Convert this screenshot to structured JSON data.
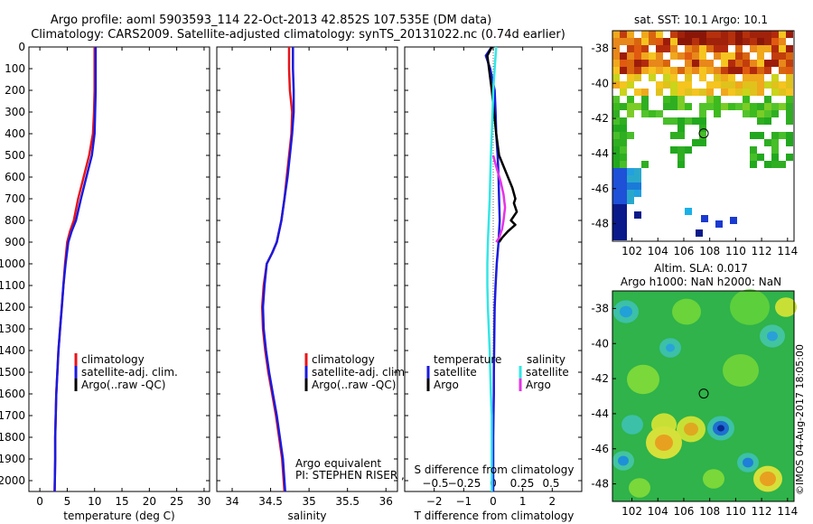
{
  "title": {
    "line1": "Argo profile: aoml 5903593_114 22-Oct-2013 42.852S 107.535E (DM data)",
    "line2": "Climatology: CARS2009. Satellite-adjusted climatology: synTS_20131022.nc (0.74d earlier)"
  },
  "colors": {
    "climatology": "#e8141a",
    "satellite": "#1a1adf",
    "argo": "#000000",
    "sat_salinity": "#33e6e6",
    "argo_salinity": "#e633e6"
  },
  "legend": {
    "climatology": "climatology",
    "satellite_adj": "satellite-adj. clim.",
    "argo_raw": "Argo(..raw -QC)",
    "temperature": "temperature",
    "salinity": "salinity",
    "satellite": "satellite",
    "argo": "Argo"
  },
  "annotations": {
    "argo_equiv": "Argo equivalent",
    "pi": "PI: STEPHEN RISER , KENNETH JOHNSON",
    "s_diff": "S difference from climatology",
    "imos_stamp": "©IMOS 04-Aug-2017 18:05:00"
  },
  "maps": {
    "sst_title": "sat. SST: 10.1  Argo: 10.1",
    "sla_title1": "Altim. SLA: 0.017",
    "sla_title2": "Argo h1000: NaN h2000: NaN",
    "lon_ticks": [
      "102",
      "104",
      "106",
      "108",
      "110",
      "112",
      "114"
    ],
    "lat_ticks": [
      "-38",
      "-40",
      "-42",
      "-44",
      "-46",
      "-48"
    ],
    "lon_values": [
      102,
      104,
      106,
      108,
      110,
      112,
      114
    ],
    "lat_values": [
      -38,
      -40,
      -42,
      -44,
      -46,
      -48
    ],
    "lon_range": [
      100.5,
      114.5
    ],
    "lat_range": [
      -37.0,
      -49.0
    ],
    "float_position": {
      "lon": 107.535,
      "lat": -42.852
    }
  },
  "chart_data": [
    {
      "type": "line",
      "name": "temperature-profile",
      "xlabel": "temperature (deg C)",
      "ylabel": "",
      "xlim": [
        -2,
        31
      ],
      "ylim": [
        2050,
        0
      ],
      "xticks": [
        0,
        5,
        10,
        15,
        20,
        25,
        30
      ],
      "xtick_labels": [
        "0",
        "5",
        "10",
        "15",
        "20",
        "25",
        "30"
      ],
      "yticks": [
        0,
        100,
        200,
        300,
        400,
        500,
        600,
        700,
        800,
        900,
        1000,
        1100,
        1200,
        1300,
        1400,
        1500,
        1600,
        1700,
        1800,
        1900,
        2000
      ],
      "ytick_labels": [
        "0",
        "100",
        "200",
        "300",
        "400",
        "500",
        "600",
        "700",
        "800",
        "900",
        "1000",
        "1100",
        "1200",
        "1300",
        "1400",
        "1500",
        "1600",
        "1700",
        "1800",
        "1900",
        "2000"
      ],
      "series": [
        {
          "name": "climatology",
          "color": "#e8141a",
          "x": [
            10.0,
            10.0,
            10.0,
            9.9,
            9.7,
            9.0,
            8.0,
            7.0,
            6.2,
            5.5,
            5.0,
            4.6,
            4.3,
            4.0,
            3.7,
            3.4,
            3.2,
            3.0,
            2.9,
            2.8,
            2.8,
            2.7
          ],
          "y": [
            0,
            100,
            200,
            300,
            400,
            500,
            600,
            700,
            800,
            850,
            900,
            1000,
            1100,
            1200,
            1300,
            1400,
            1500,
            1600,
            1700,
            1800,
            1900,
            2050
          ]
        },
        {
          "name": "satellite-adj. clim.",
          "color": "#1a1adf",
          "x": [
            10.2,
            10.2,
            10.2,
            10.1,
            10.0,
            9.5,
            8.5,
            7.5,
            6.6,
            5.8,
            5.2,
            4.7,
            4.3,
            4.0,
            3.7,
            3.4,
            3.2,
            3.0,
            2.9,
            2.8,
            2.8,
            2.7
          ],
          "y": [
            0,
            100,
            200,
            300,
            400,
            500,
            600,
            700,
            800,
            850,
            900,
            1000,
            1100,
            1200,
            1300,
            1400,
            1500,
            1600,
            1700,
            1800,
            1900,
            2050
          ]
        }
      ]
    },
    {
      "type": "line",
      "name": "salinity-profile",
      "xlabel": "salinity",
      "ylabel": "",
      "xlim": [
        33.8,
        36.15
      ],
      "ylim": [
        2050,
        0
      ],
      "xticks": [
        34,
        34.5,
        35,
        35.5,
        36
      ],
      "xtick_labels": [
        "34",
        "34.5",
        "35",
        "35.5",
        "36"
      ],
      "series": [
        {
          "name": "climatology",
          "color": "#e8141a",
          "x": [
            34.74,
            34.74,
            34.75,
            34.78,
            34.77,
            34.74,
            34.71,
            34.68,
            34.64,
            34.58,
            34.52,
            34.45,
            34.41,
            34.39,
            34.4,
            34.43,
            34.47,
            34.52,
            34.57,
            34.61,
            34.65,
            34.68
          ],
          "y": [
            0,
            100,
            200,
            300,
            400,
            500,
            600,
            700,
            800,
            900,
            950,
            1000,
            1100,
            1200,
            1300,
            1400,
            1500,
            1600,
            1700,
            1800,
            1900,
            2050
          ]
        },
        {
          "name": "satellite-adj. clim.",
          "color": "#1a1adf",
          "x": [
            34.79,
            34.79,
            34.8,
            34.8,
            34.78,
            34.75,
            34.72,
            34.68,
            34.64,
            34.58,
            34.52,
            34.45,
            34.42,
            34.4,
            34.41,
            34.44,
            34.48,
            34.53,
            34.58,
            34.62,
            34.66,
            34.69
          ],
          "y": [
            0,
            100,
            200,
            300,
            400,
            500,
            600,
            700,
            800,
            900,
            950,
            1000,
            1100,
            1200,
            1300,
            1400,
            1500,
            1600,
            1700,
            1800,
            1900,
            2050
          ]
        }
      ]
    },
    {
      "type": "line",
      "name": "difference-from-climatology",
      "xlabel": "T difference from climatology",
      "top_xlabel": "S difference from climatology",
      "xlim": [
        -3,
        3
      ],
      "ylim": [
        2050,
        0
      ],
      "xticks": [
        -2,
        -1,
        0,
        1,
        2
      ],
      "xtick_labels": [
        "−2",
        "−1",
        "0",
        "1",
        "2"
      ],
      "sticks": [
        -0.5,
        -0.25,
        0,
        0.25,
        0.5
      ],
      "stick_labels": [
        "−0.5",
        "−0.25",
        "0",
        "0.25",
        "0.5"
      ],
      "series": [
        {
          "name": "temperature satellite",
          "color": "#1a1adf",
          "x": [
            -0.05,
            -0.25,
            -0.1,
            0.05,
            0.08,
            0.1,
            0.15,
            0.18,
            0.2,
            0.22,
            0.18,
            0.12,
            0.08,
            0.05,
            0.04,
            0.03,
            0.02,
            0.02,
            0.01,
            0.0,
            0.0
          ],
          "y": [
            0,
            40,
            100,
            200,
            300,
            400,
            500,
            600,
            700,
            800,
            900,
            1000,
            1100,
            1200,
            1300,
            1400,
            1500,
            1600,
            1700,
            1800,
            2050
          ]
        },
        {
          "name": "temperature Argo",
          "color": "#000000",
          "x": [
            -0.05,
            -0.2,
            -0.05,
            0.1,
            0.2,
            0.35,
            0.5,
            0.65,
            0.75,
            0.7,
            0.8,
            0.6,
            0.75,
            0.5,
            0.3,
            0.2
          ],
          "y": [
            0,
            40,
            200,
            400,
            500,
            550,
            600,
            650,
            700,
            720,
            760,
            800,
            820,
            850,
            880,
            900
          ]
        },
        {
          "name": "salinity satellite",
          "color": "#33e6e6",
          "x": [
            0.1,
            0.05,
            0.0,
            -0.02,
            -0.05,
            -0.08,
            -0.1,
            -0.12,
            -0.15,
            -0.18,
            -0.2,
            -0.2,
            -0.18,
            -0.15,
            -0.12,
            -0.1,
            -0.08,
            -0.05,
            -0.05,
            -0.05
          ],
          "y": [
            0,
            100,
            200,
            300,
            400,
            500,
            600,
            700,
            800,
            900,
            1000,
            1100,
            1200,
            1300,
            1400,
            1500,
            1600,
            1700,
            1800,
            2050
          ]
        },
        {
          "name": "salinity Argo",
          "color": "#e633e6",
          "x": [
            0.0,
            0.12,
            0.25,
            0.35,
            0.4,
            0.35,
            0.3,
            0.2,
            0.1
          ],
          "y": [
            500,
            560,
            620,
            680,
            740,
            800,
            840,
            880,
            900
          ]
        }
      ]
    }
  ]
}
